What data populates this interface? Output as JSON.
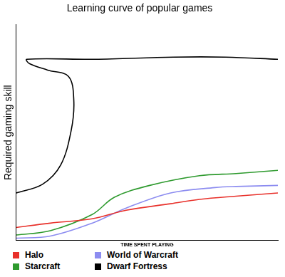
{
  "chart_data": {
    "type": "line",
    "title": "Learning curve of popular games",
    "x_label": "TIME SPENT PLAYING",
    "y_label": "Required gaming skill",
    "xlim": [
      0,
      10
    ],
    "ylim": [
      0,
      10
    ],
    "tick_labels": false,
    "grid": false,
    "legend": "bottom",
    "series": [
      {
        "name": "Halo",
        "color": "#e8302a",
        "x": [
          0,
          1.3,
          2.9,
          4.2,
          5.9,
          7.0,
          8.4,
          10
        ],
        "values": [
          0.6,
          0.8,
          1.0,
          1.4,
          1.7,
          1.9,
          2.05,
          2.2
        ]
      },
      {
        "name": "Starcraft",
        "color": "#2e9a2e",
        "x": [
          0,
          1.3,
          2.9,
          3.75,
          5.1,
          7.0,
          8.4,
          10
        ],
        "values": [
          0.25,
          0.45,
          1.2,
          2.0,
          2.55,
          3.0,
          3.1,
          3.25
        ]
      },
      {
        "name": "World of Warcraft",
        "color": "#8c8cf0",
        "x": [
          0,
          1.3,
          2.9,
          4.2,
          5.9,
          7.6,
          8.4,
          10
        ],
        "values": [
          0.1,
          0.2,
          0.8,
          1.5,
          2.2,
          2.45,
          2.5,
          2.55
        ]
      },
      {
        "name": "Dwarf Fortress",
        "color": "#000000",
        "x": [
          0,
          1.0,
          1.7,
          2.1,
          2.2,
          2.0,
          1.2,
          0.5,
          0.4,
          3,
          6,
          8,
          10
        ],
        "values": [
          2.2,
          2.6,
          3.5,
          5.1,
          6.5,
          7.6,
          7.9,
          8.2,
          8.4,
          8.4,
          8.5,
          8.5,
          8.4
        ]
      }
    ]
  }
}
